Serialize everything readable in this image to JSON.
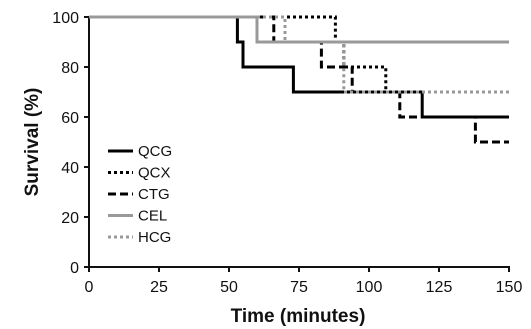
{
  "chart_data": {
    "type": "line",
    "step": true,
    "xlabel": "Time (minutes)",
    "ylabel": "Survival (%)",
    "xlim": [
      0,
      150
    ],
    "ylim": [
      0,
      100
    ],
    "xticks": [
      0,
      25,
      50,
      75,
      100,
      125,
      150
    ],
    "yticks": [
      0,
      20,
      40,
      60,
      80,
      100
    ],
    "grid": false,
    "legend_position": "lower-left",
    "series": [
      {
        "name": "QCG",
        "color": "#000000",
        "style": "solid",
        "x": [
          0,
          53,
          55,
          73,
          119,
          150
        ],
        "y": [
          100,
          90,
          80,
          70,
          60,
          60
        ]
      },
      {
        "name": "QCX",
        "color": "#000000",
        "style": "dotted",
        "x": [
          0,
          88,
          91,
          106,
          150
        ],
        "y": [
          100,
          90,
          80,
          70,
          70
        ]
      },
      {
        "name": "CTG",
        "color": "#000000",
        "style": "dashed",
        "x": [
          0,
          66,
          83,
          88,
          94,
          111,
          138,
          150
        ],
        "y": [
          100,
          90,
          80,
          80,
          70,
          60,
          50,
          50
        ]
      },
      {
        "name": "CEL",
        "color": "#999999",
        "style": "solid",
        "x": [
          0,
          60,
          150
        ],
        "y": [
          100,
          90,
          90
        ]
      },
      {
        "name": "HCG",
        "color": "#999999",
        "style": "dotted",
        "x": [
          0,
          70,
          91,
          150
        ],
        "y": [
          100,
          90,
          70,
          70
        ]
      }
    ]
  }
}
